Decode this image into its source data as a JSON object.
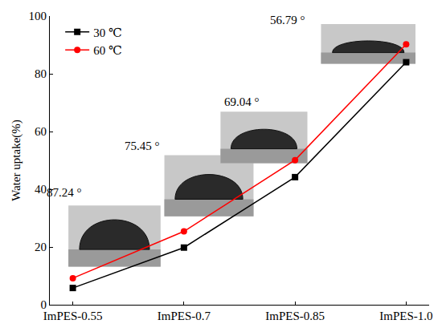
{
  "chart_data": {
    "type": "line",
    "y_label": "Water uptake(%)",
    "categories": [
      "ImPES-0.55",
      "ImPES-0.7",
      "ImPES-0.85",
      "ImPES-1.0"
    ],
    "series": [
      {
        "name": "30 ℃",
        "color": "#000000",
        "marker": "square",
        "values": [
          5.8,
          19.8,
          44.2,
          84.0
        ]
      },
      {
        "name": "60 ℃",
        "color": "#ff0000",
        "marker": "circle",
        "values": [
          9.2,
          25.4,
          50.1,
          90.2
        ]
      }
    ],
    "annotations": [
      "87.24 °",
      "75.45 °",
      "69.04 °",
      "56.79 °"
    ],
    "ylim": [
      0,
      100
    ],
    "yticks": [
      0,
      20,
      40,
      60,
      80,
      100
    ],
    "grid": false,
    "legend": "upper left"
  }
}
